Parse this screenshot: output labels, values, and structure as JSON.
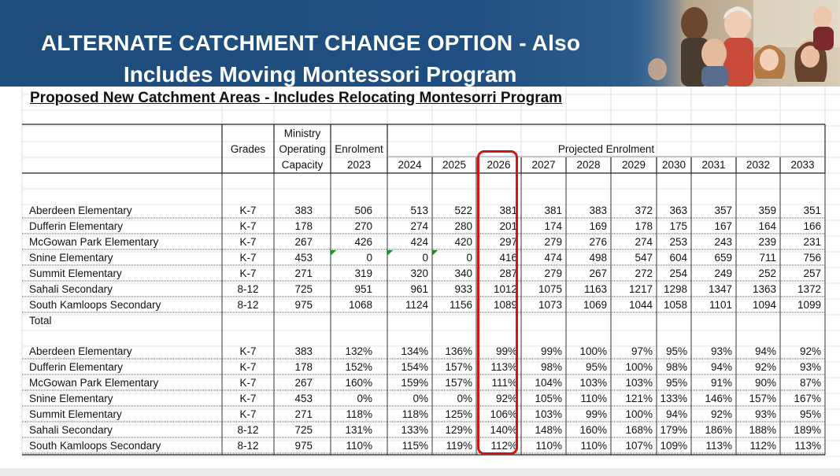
{
  "header": {
    "title_line1": "ALTERNATE CATCHMENT CHANGE OPTION - Also",
    "title_line2": "Includes Moving Montessori Program"
  },
  "sheet": {
    "subtitle": "Proposed New Catchment Areas - Includes Relocating Montesorri Program",
    "headers": {
      "grades": "Grades",
      "capacity": [
        "Ministry",
        "Operating",
        "Capacity"
      ],
      "enrolment": [
        "Enrolment",
        "2023"
      ],
      "projected": "Projected Enrolment"
    },
    "years": [
      "2024",
      "2025",
      "2026",
      "2027",
      "2028",
      "2029",
      "2030",
      "2031",
      "2032",
      "2033"
    ],
    "enrolment_rows": [
      {
        "school": "Aberdeen Elementary",
        "grades": "K-7",
        "capacity": "383",
        "e2023": "506",
        "proj": [
          "513",
          "522",
          "381",
          "381",
          "383",
          "372",
          "363",
          "357",
          "359",
          "351"
        ]
      },
      {
        "school": "Dufferin Elementary",
        "grades": "K-7",
        "capacity": "178",
        "e2023": "270",
        "proj": [
          "274",
          "280",
          "201",
          "174",
          "169",
          "178",
          "175",
          "167",
          "164",
          "166"
        ]
      },
      {
        "school": "McGowan Park Elementary",
        "grades": "K-7",
        "capacity": "267",
        "e2023": "426",
        "proj": [
          "424",
          "420",
          "297",
          "279",
          "276",
          "274",
          "253",
          "243",
          "239",
          "231"
        ]
      },
      {
        "school": "Snine Elementary",
        "grades": "K-7",
        "capacity": "453",
        "e2023": "0",
        "proj": [
          "0",
          "0",
          "416",
          "474",
          "498",
          "547",
          "604",
          "659",
          "711",
          "756"
        ]
      },
      {
        "school": "Summit Elementary",
        "grades": "K-7",
        "capacity": "271",
        "e2023": "319",
        "proj": [
          "320",
          "340",
          "287",
          "279",
          "267",
          "272",
          "254",
          "249",
          "252",
          "257"
        ]
      },
      {
        "school": "Sahali Secondary",
        "grades": "8-12",
        "capacity": "725",
        "e2023": "951",
        "proj": [
          "961",
          "933",
          "1012",
          "1075",
          "1163",
          "1217",
          "1298",
          "1347",
          "1363",
          "1372"
        ]
      },
      {
        "school": "South Kamloops Secondary",
        "grades": "8-12",
        "capacity": "975",
        "e2023": "1068",
        "proj": [
          "1124",
          "1156",
          "1089",
          "1073",
          "1069",
          "1044",
          "1058",
          "1101",
          "1094",
          "1099"
        ]
      }
    ],
    "total_label": "Total",
    "utilization_rows": [
      {
        "school": "Aberdeen Elementary",
        "grades": "K-7",
        "capacity": "383",
        "e2023": "132%",
        "proj": [
          "134%",
          "136%",
          "99%",
          "99%",
          "100%",
          "97%",
          "95%",
          "93%",
          "94%",
          "92%"
        ]
      },
      {
        "school": "Dufferin Elementary",
        "grades": "K-7",
        "capacity": "178",
        "e2023": "152%",
        "proj": [
          "154%",
          "157%",
          "113%",
          "98%",
          "95%",
          "100%",
          "98%",
          "94%",
          "92%",
          "93%"
        ]
      },
      {
        "school": "McGowan Park Elementary",
        "grades": "K-7",
        "capacity": "267",
        "e2023": "160%",
        "proj": [
          "159%",
          "157%",
          "111%",
          "104%",
          "103%",
          "103%",
          "95%",
          "91%",
          "90%",
          "87%"
        ]
      },
      {
        "school": "Snine Elementary",
        "grades": "K-7",
        "capacity": "453",
        "e2023": "0%",
        "proj": [
          "0%",
          "0%",
          "92%",
          "105%",
          "110%",
          "121%",
          "133%",
          "146%",
          "157%",
          "167%"
        ]
      },
      {
        "school": "Summit Elementary",
        "grades": "K-7",
        "capacity": "271",
        "e2023": "118%",
        "proj": [
          "118%",
          "125%",
          "106%",
          "103%",
          "99%",
          "100%",
          "94%",
          "92%",
          "93%",
          "95%"
        ]
      },
      {
        "school": "Sahali Secondary",
        "grades": "8-12",
        "capacity": "725",
        "e2023": "131%",
        "proj": [
          "133%",
          "129%",
          "140%",
          "148%",
          "160%",
          "168%",
          "179%",
          "186%",
          "188%",
          "189%"
        ]
      },
      {
        "school": "South Kamloops Secondary",
        "grades": "8-12",
        "capacity": "975",
        "e2023": "110%",
        "proj": [
          "115%",
          "119%",
          "112%",
          "110%",
          "110%",
          "107%",
          "109%",
          "113%",
          "112%",
          "113%"
        ]
      }
    ],
    "highlight_color": "#d21414"
  }
}
